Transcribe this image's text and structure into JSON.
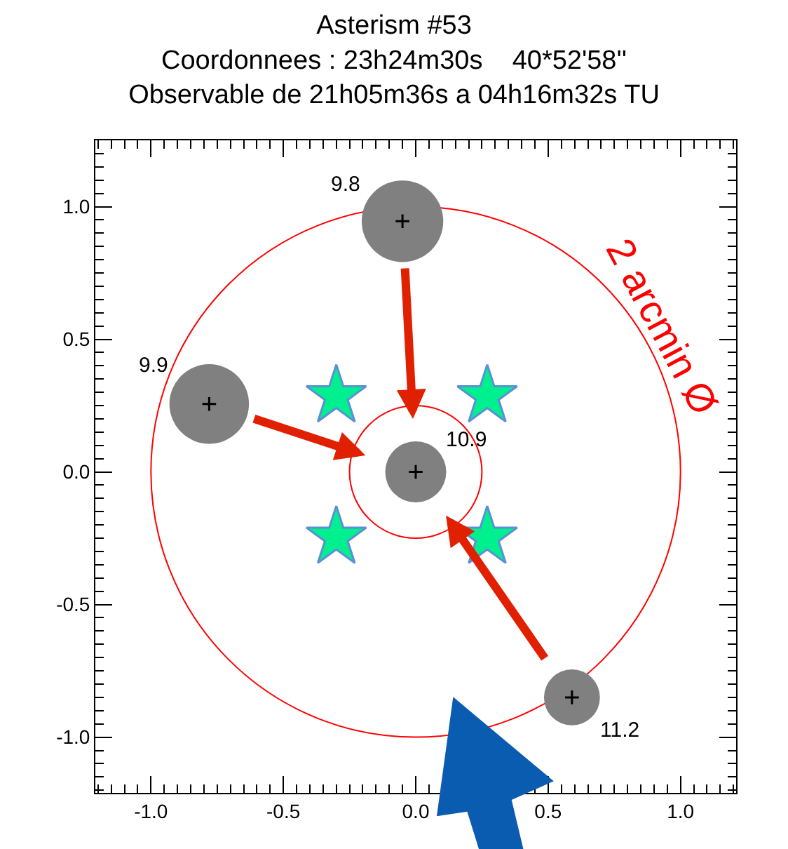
{
  "chart_data": {
    "type": "bubble",
    "title": "Asterism #53",
    "subtitle": "Coordonnees : 23h24m30s    40*52'58''\nObservable de 21h05m36s a 04h16m32s TU",
    "xlim": [
      -1.21,
      1.21
    ],
    "ylim": [
      -1.21,
      1.25
    ],
    "xticks": [
      {
        "value": -1.0,
        "label": "-1.0"
      },
      {
        "value": -0.5,
        "label": "-0.5"
      },
      {
        "value": 0.0,
        "label": "0.0"
      },
      {
        "value": 0.5,
        "label": "0.5"
      },
      {
        "value": 1.0,
        "label": "1.0"
      }
    ],
    "yticks": [
      {
        "value": -1.0,
        "label": "-1.0"
      },
      {
        "value": -0.5,
        "label": "-0.5"
      },
      {
        "value": 0.0,
        "label": "0.0"
      },
      {
        "value": 0.5,
        "label": "0.5"
      },
      {
        "value": 1.0,
        "label": "1.0"
      }
    ],
    "series": [
      {
        "type": "bubble",
        "color": "#808080",
        "x": [
          -0.05,
          -0.78,
          0.0,
          0.59
        ],
        "values": [
          0.945,
          0.256,
          0.0,
          -0.85
        ],
        "sizes": [
          1,
          0.95,
          0.56,
          0.47
        ]
      },
      {
        "type": "scatter",
        "marker": "cross",
        "color": "#000000",
        "x": [
          -0.05,
          -0.78,
          0.0,
          0.59
        ],
        "values": [
          0.945,
          0.256,
          0.0,
          -0.85
        ]
      },
      {
        "type": "scatter",
        "marker": "star",
        "color": "#00f090",
        "x": [
          -0.3,
          0.27,
          -0.3,
          0.27
        ],
        "values": [
          0.286,
          0.286,
          -0.247,
          -0.247
        ]
      }
    ],
    "annotations": [
      "9.8",
      "9.9",
      "10.9",
      "11.2",
      "2 arcmin Ø"
    ]
  }
}
